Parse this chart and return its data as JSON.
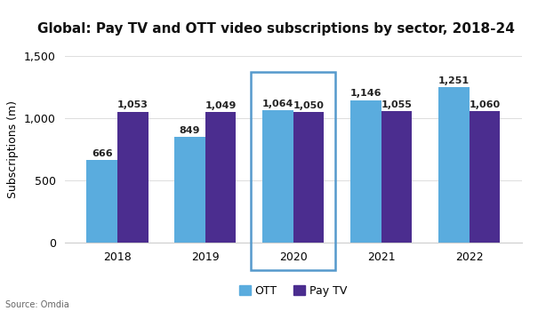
{
  "title": "Global: Pay TV and OTT video subscriptions by sector, 2018-24",
  "years": [
    "2018",
    "2019",
    "2020",
    "2021",
    "2022"
  ],
  "ott_values": [
    666,
    849,
    1064,
    1146,
    1251
  ],
  "paytv_values": [
    1053,
    1049,
    1050,
    1055,
    1060
  ],
  "ott_color": "#5aacde",
  "paytv_color": "#4b2d8f",
  "ylabel": "Subscriptions (m)",
  "ylim": [
    0,
    1500
  ],
  "yticks": [
    0,
    500,
    1000,
    1500
  ],
  "ytick_labels": [
    "0",
    "500",
    "1,000",
    "1,500"
  ],
  "highlight_year_index": 2,
  "highlight_box_color": "#5599cc",
  "source_text": "Source: Omdia",
  "bar_width": 0.35,
  "legend_ott": "OTT",
  "legend_paytv": "Pay TV",
  "background_color": "#ffffff",
  "title_fontsize": 11,
  "label_fontsize": 8,
  "axis_fontsize": 9
}
